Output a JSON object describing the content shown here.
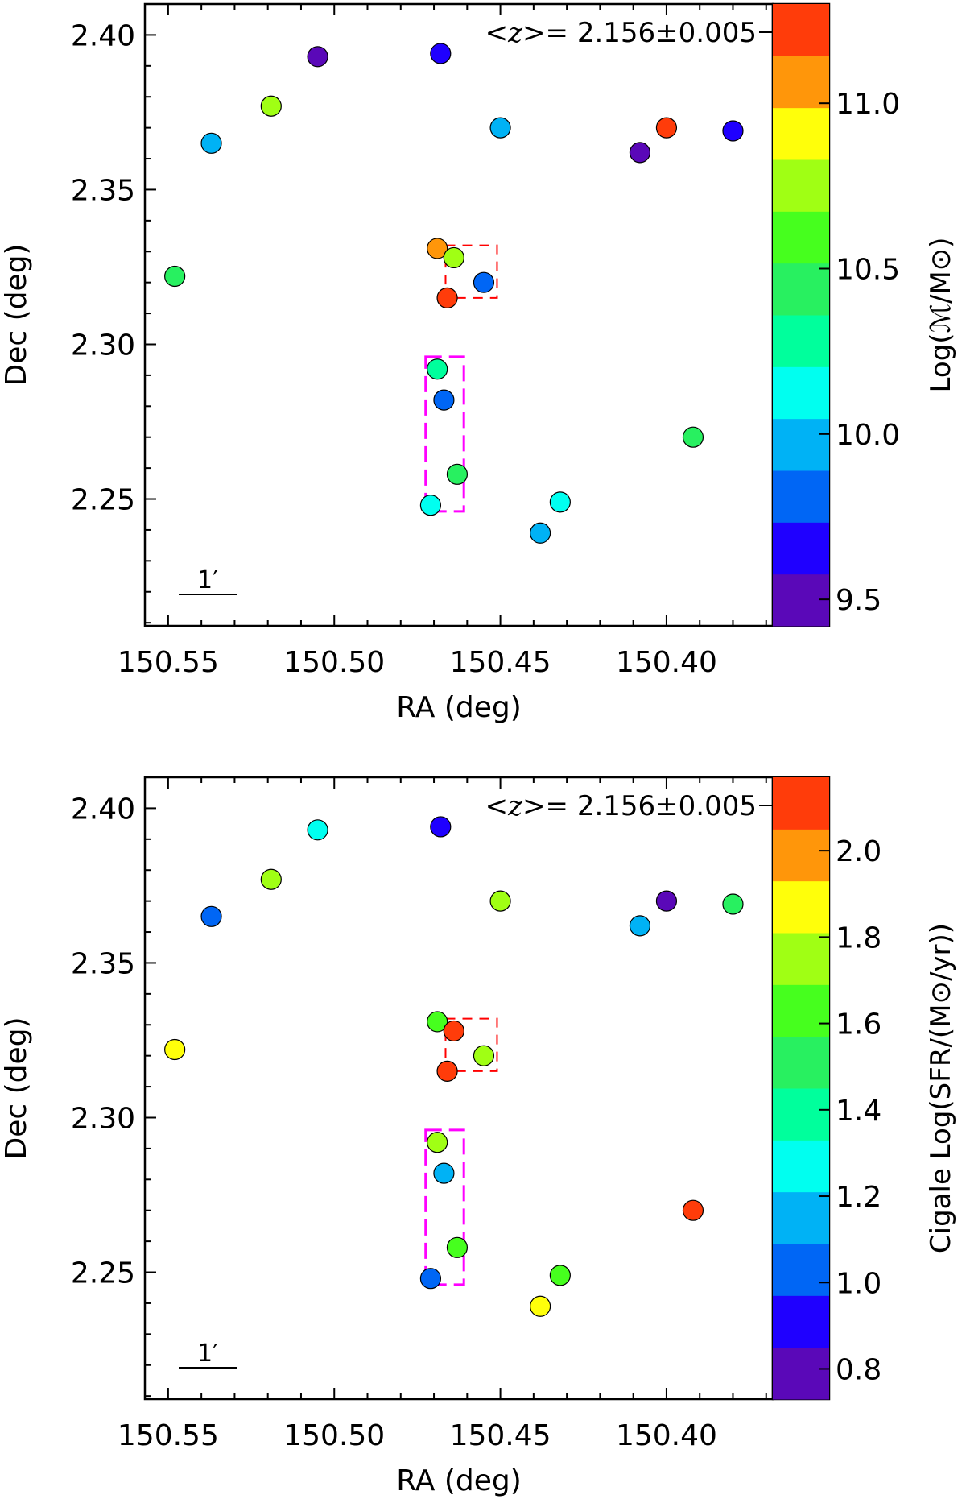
{
  "chart_data": [
    {
      "type": "scatter",
      "annotation": {
        "prefix": "<z>= ",
        "value": "2.156±0.005"
      },
      "xlabel": "RA (deg)",
      "ylabel": "Dec (deg)",
      "xlim": [
        150.557,
        150.368
      ],
      "ylim": [
        2.209,
        2.41
      ],
      "xticks": [
        "150.55",
        "150.50",
        "150.45",
        "150.40"
      ],
      "xtick_values": [
        150.55,
        150.5,
        150.45,
        150.4
      ],
      "yticks": [
        "2.40",
        "2.35",
        "2.30",
        "2.25"
      ],
      "ytick_values": [
        2.4,
        2.35,
        2.3,
        2.25
      ],
      "scalebar_label": "1′",
      "colorbar": {
        "label": "Log(ℳ/M⊙)",
        "range": [
          9.42,
          11.3
        ],
        "ticks": [
          "9.5",
          "10.0",
          "10.5",
          "11.0"
        ],
        "tick_values": [
          9.5,
          10.0,
          10.5,
          11.0
        ],
        "colors": [
          "#5a08b8",
          "#1f00ff",
          "#0066f5",
          "#00b2f5",
          "#00fff0",
          "#00ff9c",
          "#28f060",
          "#46ff1e",
          "#a0ff14",
          "#ffff0a",
          "#ff960a",
          "#ff3c0a"
        ]
      },
      "boxes": [
        {
          "style": "red-dashed",
          "ra": [
            150.4665,
            150.451
          ],
          "dec": [
            2.332,
            2.315
          ]
        },
        {
          "style": "magenta-dashed",
          "ra": [
            150.4725,
            150.461
          ],
          "dec": [
            2.296,
            2.246
          ]
        }
      ],
      "points": [
        {
          "ra": 150.505,
          "dec": 2.393,
          "value": 9.5
        },
        {
          "ra": 150.468,
          "dec": 2.394,
          "value": 9.6
        },
        {
          "ra": 150.519,
          "dec": 2.377,
          "value": 10.75
        },
        {
          "ra": 150.537,
          "dec": 2.365,
          "value": 9.9
        },
        {
          "ra": 150.45,
          "dec": 2.37,
          "value": 9.9
        },
        {
          "ra": 150.4,
          "dec": 2.37,
          "value": 11.25
        },
        {
          "ra": 150.408,
          "dec": 2.362,
          "value": 9.45
        },
        {
          "ra": 150.38,
          "dec": 2.369,
          "value": 9.65
        },
        {
          "ra": 150.548,
          "dec": 2.322,
          "value": 10.4
        },
        {
          "ra": 150.469,
          "dec": 2.331,
          "value": 11.0
        },
        {
          "ra": 150.464,
          "dec": 2.328,
          "value": 10.75
        },
        {
          "ra": 150.466,
          "dec": 2.315,
          "value": 11.25
        },
        {
          "ra": 150.455,
          "dec": 2.32,
          "value": 9.85
        },
        {
          "ra": 150.469,
          "dec": 2.292,
          "value": 10.35
        },
        {
          "ra": 150.467,
          "dec": 2.282,
          "value": 9.8
        },
        {
          "ra": 150.463,
          "dec": 2.258,
          "value": 10.5
        },
        {
          "ra": 150.471,
          "dec": 2.248,
          "value": 10.2
        },
        {
          "ra": 150.438,
          "dec": 2.239,
          "value": 10.0
        },
        {
          "ra": 150.432,
          "dec": 2.249,
          "value": 10.15
        },
        {
          "ra": 150.392,
          "dec": 2.27,
          "value": 10.4
        }
      ]
    },
    {
      "type": "scatter",
      "annotation": {
        "prefix": "<z>= ",
        "value": "2.156±0.005"
      },
      "xlabel": "RA (deg)",
      "ylabel": "Dec (deg)",
      "xlim": [
        150.557,
        150.368
      ],
      "ylim": [
        2.209,
        2.41
      ],
      "xticks": [
        "150.55",
        "150.50",
        "150.45",
        "150.40"
      ],
      "xtick_values": [
        150.55,
        150.5,
        150.45,
        150.4
      ],
      "yticks": [
        "2.40",
        "2.35",
        "2.30",
        "2.25"
      ],
      "ytick_values": [
        2.4,
        2.35,
        2.3,
        2.25
      ],
      "scalebar_label": "1′",
      "colorbar": {
        "label": "Cigale Log(SFR/(M⊙/yr))",
        "range": [
          0.73,
          2.17
        ],
        "ticks": [
          "0.8",
          "1.0",
          "1.2",
          "1.4",
          "1.6",
          "1.8",
          "2.0"
        ],
        "tick_values": [
          0.8,
          1.0,
          1.2,
          1.4,
          1.6,
          1.8,
          2.0
        ],
        "colors": [
          "#5a08b8",
          "#1f00ff",
          "#0066f5",
          "#00b2f5",
          "#00fff0",
          "#00ff9c",
          "#28f060",
          "#46ff1e",
          "#a0ff14",
          "#ffff0a",
          "#ff960a",
          "#ff3c0a"
        ]
      },
      "boxes": [
        {
          "style": "red-dashed",
          "ra": [
            150.4665,
            150.451
          ],
          "dec": [
            2.332,
            2.315
          ]
        },
        {
          "style": "magenta-dashed",
          "ra": [
            150.4725,
            150.461
          ],
          "dec": [
            2.296,
            2.246
          ]
        }
      ],
      "points": [
        {
          "ra": 150.505,
          "dec": 2.393,
          "value": 1.25
        },
        {
          "ra": 150.468,
          "dec": 2.394,
          "value": 0.9
        },
        {
          "ra": 150.519,
          "dec": 2.377,
          "value": 1.75
        },
        {
          "ra": 150.537,
          "dec": 2.365,
          "value": 1.0
        },
        {
          "ra": 150.45,
          "dec": 2.37,
          "value": 1.7
        },
        {
          "ra": 150.4,
          "dec": 2.37,
          "value": 0.78
        },
        {
          "ra": 150.408,
          "dec": 2.362,
          "value": 1.15
        },
        {
          "ra": 150.38,
          "dec": 2.369,
          "value": 1.5
        },
        {
          "ra": 150.548,
          "dec": 2.322,
          "value": 1.92
        },
        {
          "ra": 150.469,
          "dec": 2.331,
          "value": 1.65
        },
        {
          "ra": 150.464,
          "dec": 2.328,
          "value": 2.1
        },
        {
          "ra": 150.466,
          "dec": 2.315,
          "value": 2.15
        },
        {
          "ra": 150.455,
          "dec": 2.32,
          "value": 1.8
        },
        {
          "ra": 150.469,
          "dec": 2.292,
          "value": 1.75
        },
        {
          "ra": 150.467,
          "dec": 2.282,
          "value": 1.15
        },
        {
          "ra": 150.463,
          "dec": 2.258,
          "value": 1.65
        },
        {
          "ra": 150.471,
          "dec": 2.248,
          "value": 1.0
        },
        {
          "ra": 150.438,
          "dec": 2.239,
          "value": 1.9
        },
        {
          "ra": 150.432,
          "dec": 2.249,
          "value": 1.6
        },
        {
          "ra": 150.392,
          "dec": 2.27,
          "value": 2.05
        }
      ]
    }
  ]
}
